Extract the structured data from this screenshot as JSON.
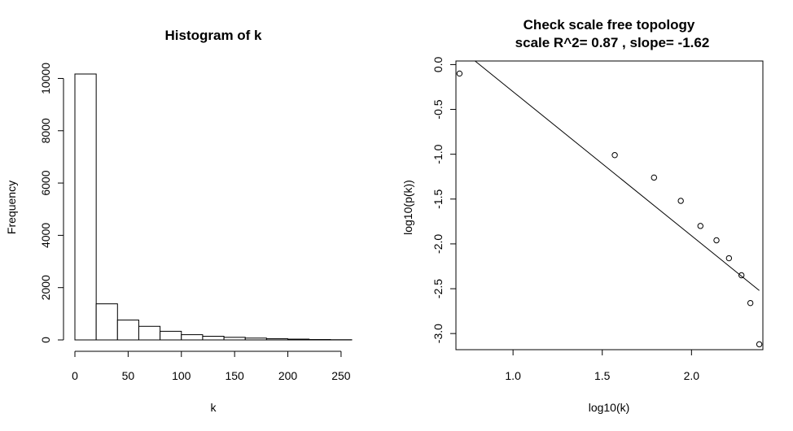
{
  "chart_data": [
    {
      "type": "bar",
      "title": "Histogram of k",
      "xlabel": "k",
      "ylabel": "Frequency",
      "bin_edges": [
        0,
        20,
        40,
        60,
        80,
        100,
        120,
        140,
        160,
        180,
        200,
        220,
        240,
        260
      ],
      "values": [
        10170,
        1380,
        760,
        520,
        330,
        200,
        140,
        100,
        70,
        45,
        30,
        15,
        8
      ],
      "xlim": [
        0,
        260
      ],
      "ylim": [
        0,
        10170
      ],
      "x_ticks": [
        0,
        50,
        100,
        150,
        200,
        250
      ],
      "y_ticks": [
        0,
        2000,
        4000,
        6000,
        8000,
        10000
      ]
    },
    {
      "type": "scatter",
      "title": "Check scale free topology",
      "subtitle": "scale R^2= 0.87 , slope= -1.62",
      "xlabel": "log10(k)",
      "ylabel": "log10(p(k))",
      "x": [
        0.7,
        1.57,
        1.79,
        1.94,
        2.05,
        2.14,
        2.21,
        2.28,
        2.33,
        2.38
      ],
      "y": [
        -0.1,
        -1.01,
        -1.26,
        -1.52,
        -1.8,
        -1.96,
        -2.16,
        -2.35,
        -2.66,
        -3.12
      ],
      "fit_line": {
        "x": [
          0.7,
          2.38
        ],
        "y": [
          0.18,
          -2.52
        ]
      },
      "xlim": [
        0.68,
        2.4
      ],
      "ylim": [
        -3.18,
        0.04
      ],
      "x_ticks": [
        1.0,
        1.5,
        2.0
      ],
      "x_tick_labels": [
        "1.0",
        "1.5",
        "2.0"
      ],
      "y_ticks": [
        0.0,
        -0.5,
        -1.0,
        -1.5,
        -2.0,
        -2.5,
        -3.0
      ],
      "y_tick_labels": [
        "0.0",
        "-0.5",
        "-1.0",
        "-1.5",
        "-2.0",
        "-2.5",
        "-3.0"
      ]
    }
  ]
}
